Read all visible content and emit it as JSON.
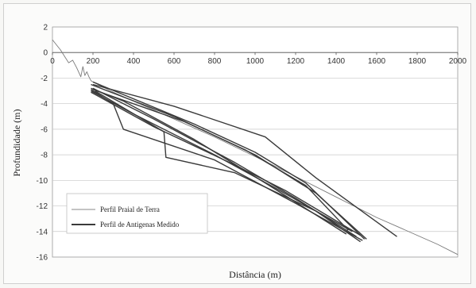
{
  "chart_data": {
    "type": "line",
    "xlabel": "Distância (m)",
    "ylabel": "Profundidade (m)",
    "xlim": [
      0,
      2000
    ],
    "ylim": [
      -16,
      2
    ],
    "x_ticks": [
      0,
      200,
      400,
      600,
      800,
      1000,
      1200,
      1400,
      1600,
      1800,
      2000
    ],
    "y_ticks": [
      2,
      0,
      -2,
      -4,
      -6,
      -8,
      -10,
      -12,
      -14,
      -16
    ],
    "grid": "horizontal",
    "legend_position": "bottom-left",
    "legend": [
      "Perfil Praial de Terra",
      "Perfil de Antigenas Medido"
    ],
    "series": [
      {
        "name": "Perfil Praial de Terra",
        "style": "thin",
        "x": [
          0,
          20,
          40,
          60,
          80,
          100,
          120,
          140,
          150,
          160,
          170,
          180,
          190,
          200,
          300,
          500,
          800,
          1100,
          1400,
          1600,
          1700,
          1800,
          1900,
          2000
        ],
        "y": [
          1.0,
          0.6,
          0.2,
          -0.3,
          -0.8,
          -0.6,
          -1.2,
          -1.9,
          -1.1,
          -1.8,
          -1.5,
          -1.9,
          -2.2,
          -2.3,
          -3.1,
          -4.5,
          -6.6,
          -8.9,
          -11.3,
          -12.9,
          -13.6,
          -14.3,
          -15.0,
          -15.8
        ]
      },
      {
        "name": "Perfil de Antigenas Medido",
        "style": "thick",
        "profiles": [
          {
            "x": [
              190,
              600,
              1000,
              1300,
              1550
            ],
            "y": [
              -2.5,
              -5.0,
              -8.0,
              -11.0,
              -14.6
            ]
          },
          {
            "x": [
              200,
              500,
              900,
              1200,
              1500
            ],
            "y": [
              -2.8,
              -5.2,
              -8.6,
              -11.4,
              -14.4
            ]
          },
          {
            "x": [
              190,
              400,
              800,
              1100,
              1480
            ],
            "y": [
              -3.0,
              -4.8,
              -8.0,
              -10.6,
              -14.0
            ]
          },
          {
            "x": [
              190,
              350,
              700,
              1050,
              1450
            ],
            "y": [
              -2.8,
              -3.8,
              -6.8,
              -10.2,
              -14.2
            ]
          },
          {
            "x": [
              200,
              700,
              1000,
              1250,
              1540
            ],
            "y": [
              -2.3,
              -5.6,
              -7.8,
              -10.2,
              -14.6
            ]
          },
          {
            "x": [
              190,
              300,
              350,
              800,
              1200,
              1530
            ],
            "y": [
              -2.9,
              -4.0,
              -6.0,
              -8.4,
              -11.8,
              -14.7
            ]
          },
          {
            "x": [
              210,
              550,
              560,
              900,
              1300,
              1520
            ],
            "y": [
              -3.0,
              -6.2,
              -8.2,
              -9.4,
              -12.4,
              -14.8
            ]
          },
          {
            "x": [
              200,
              600,
              1050,
              1300,
              1700
            ],
            "y": [
              -2.5,
              -4.2,
              -6.6,
              -9.8,
              -14.4
            ]
          },
          {
            "x": [
              190,
              500,
              900,
              1150,
              1520
            ],
            "y": [
              -3.1,
              -5.8,
              -8.8,
              -10.8,
              -14.3
            ]
          },
          {
            "x": [
              200,
              650,
              950,
              1250,
              1460
            ],
            "y": [
              -2.9,
              -5.4,
              -7.6,
              -10.4,
              -13.9
            ]
          }
        ]
      }
    ]
  }
}
